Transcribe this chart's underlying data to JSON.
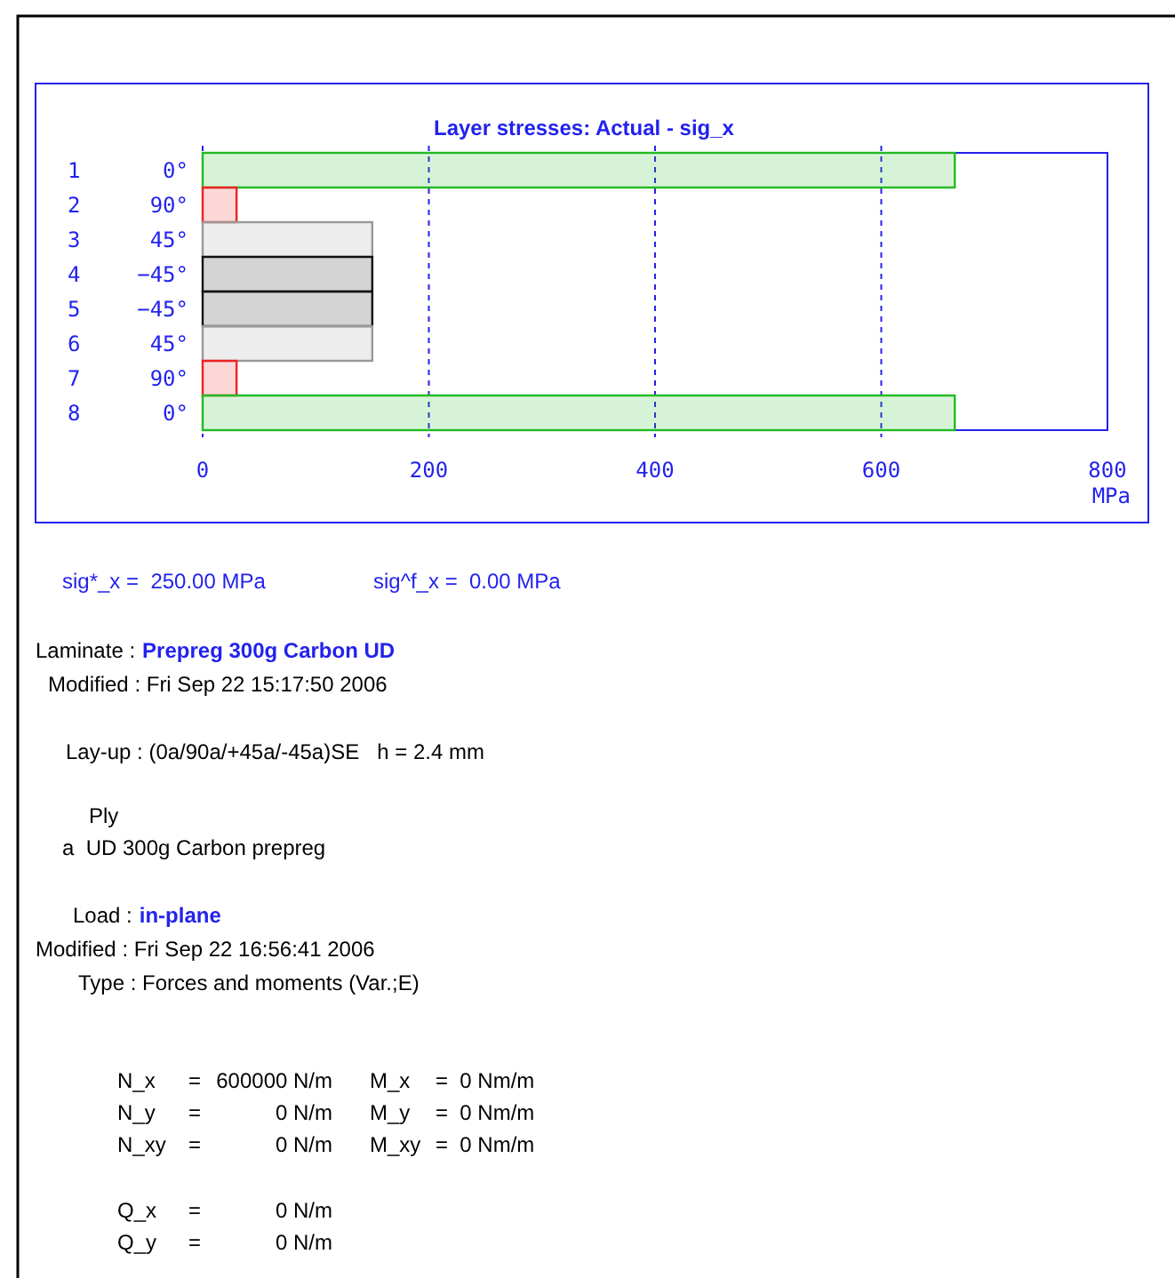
{
  "chart_data": {
    "type": "bar",
    "orientation": "horizontal",
    "title": "Layer stresses: Actual - sig_x",
    "xlabel": "MPa",
    "categories": [
      "1 0°",
      "2 90°",
      "3 45°",
      "4 −45°",
      "5 −45°",
      "6 45°",
      "7 90°",
      "8 0°"
    ],
    "values": [
      665,
      30,
      150,
      150,
      150,
      150,
      30,
      665
    ],
    "colors": [
      "#22bb22",
      "#ee2222",
      "#999999",
      "#111111",
      "#111111",
      "#999999",
      "#ee2222",
      "#22bb22"
    ],
    "xlim": [
      0,
      800
    ],
    "xticks": [
      0,
      200,
      400,
      600,
      800
    ],
    "grid": "x",
    "annotations": [
      "sig*_x =  250.00 MPa",
      "sig^f_x =  0.00 MPa",
      "Laminate :",
      "Prepreg 300g Carbon UD",
      "Modified : Fri Sep 22 15:17:50 2006",
      "Lay-up : (0a/90a/+45a/-45a)SE   h = 2.4 mm",
      "Ply",
      "a  UD 300g Carbon prepreg",
      "Load :",
      "in-plane",
      "Modified : Fri Sep 22 16:56:41 2006",
      "Type : Forces and moments (Var.;E)",
      "N_x",
      "=",
      "600000 N/m",
      "M_x",
      "=  0 Nm/m",
      "N_y",
      "=",
      "0 N/m",
      "M_y",
      "=  0 Nm/m",
      "N_xy",
      "=",
      "0 N/m",
      "M_xy",
      "=  0 Nm/m",
      "Q_x",
      "=",
      "0 N/m",
      "Q_y",
      "=",
      "0 N/m"
    ]
  }
}
